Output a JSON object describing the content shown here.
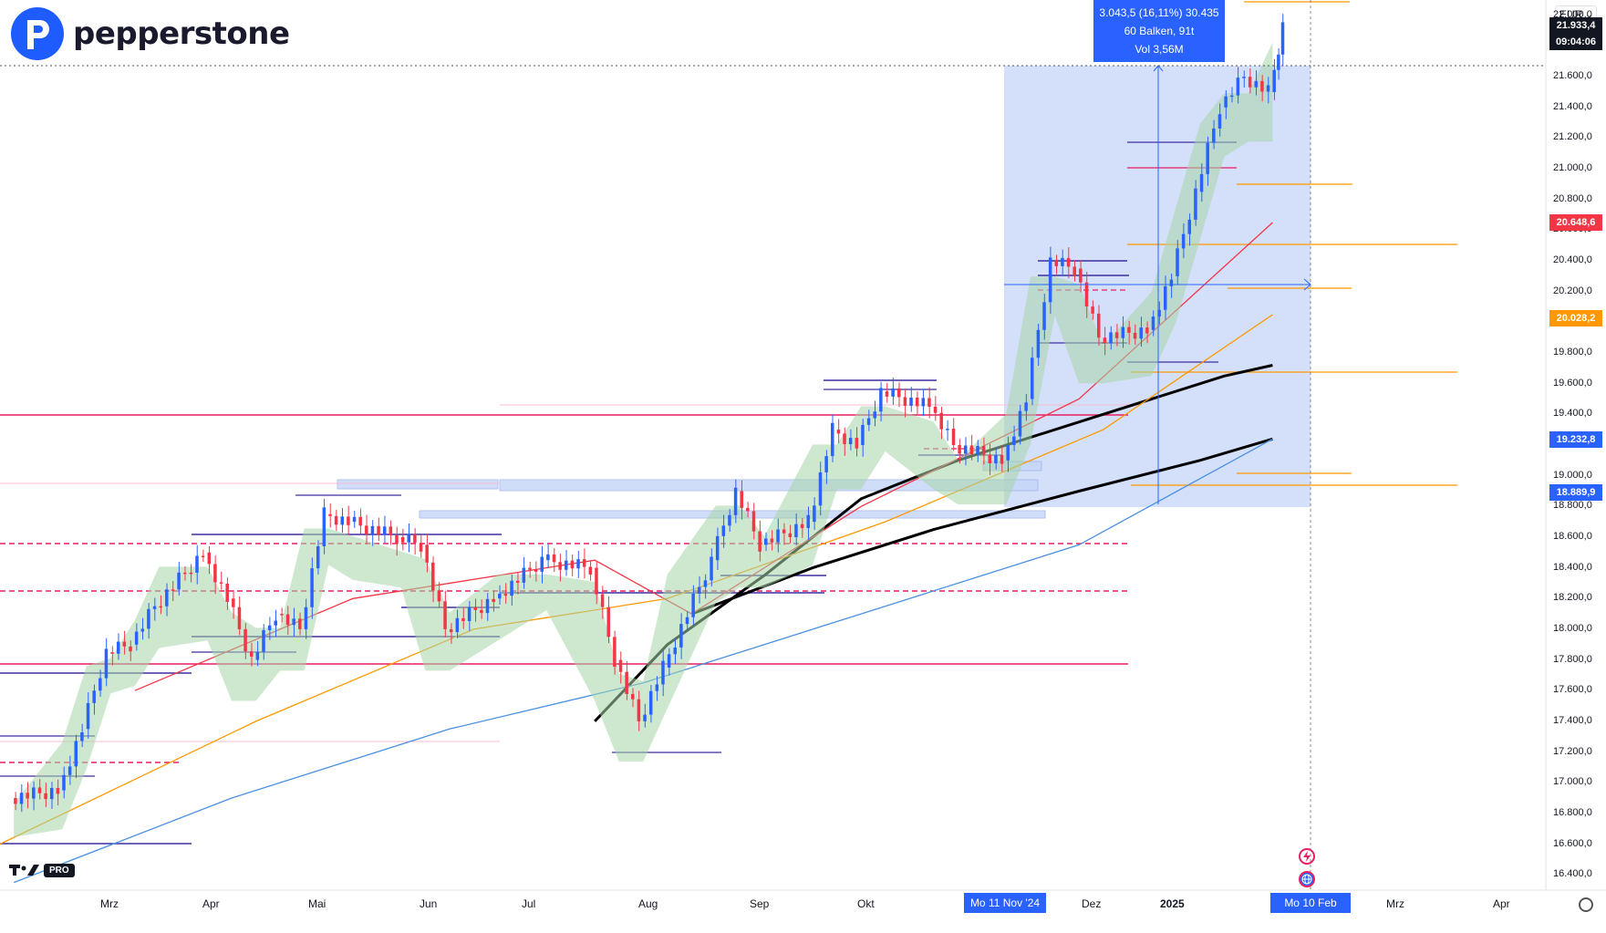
{
  "header": {
    "brand": "pepperstone",
    "currency": "EUR"
  },
  "measure": {
    "line1": "3.043,5 (16,11%) 30.435",
    "line2": "60 Balken, 91t",
    "line3": "Vol 3,56M"
  },
  "price_axis": {
    "ticks": [
      "22.000,0",
      "21.600,0",
      "21.400,0",
      "21.200,0",
      "21.000,0",
      "20.800,0",
      "20.600,0",
      "20.400,0",
      "20.200,0",
      "19.800,0",
      "19.600,0",
      "19.400,0",
      "19.000,0",
      "18.800,0",
      "18.600,0",
      "18.400,0",
      "18.200,0",
      "18.000,0",
      "17.800,0",
      "17.600,0",
      "17.400,0",
      "17.200,0",
      "17.000,0",
      "16.800,0",
      "16.600,0",
      "16.400,0"
    ],
    "tags": [
      {
        "label": "21.933,4",
        "color": "#131722"
      },
      {
        "label": "09:04:06",
        "color": "#131722"
      },
      {
        "label": "20.648,6",
        "color": "#f23645"
      },
      {
        "label": "20.028,2",
        "color": "#ff9800"
      },
      {
        "label": "19.232,8",
        "color": "#2962ff"
      },
      {
        "label": "18.889,9",
        "color": "#2962ff"
      }
    ]
  },
  "time_axis": {
    "months": [
      "Mrz",
      "Apr",
      "Mai",
      "Jun",
      "Jul",
      "Aug",
      "Sep",
      "Okt",
      "Dez",
      "Mrz",
      "Apr"
    ],
    "year": "2025",
    "range_start": "Mo 11 Nov '24",
    "range_end": "Mo 10 Feb '25"
  },
  "footer": {
    "tv_badge": "PRO"
  },
  "colors": {
    "up": "#2962ff",
    "down": "#f23645",
    "ema_fill_up": "#a5d6a7",
    "ema_fill_down": "#d7a7a7",
    "orange": "#ff9800",
    "blue_ma": "#4a90e2",
    "black_ma": "#000000",
    "highlight": "#c5d5f8"
  },
  "chart_data": {
    "type": "candlestick",
    "instrument": "",
    "currency": "EUR",
    "y_range": [
      16300,
      22100
    ],
    "x_range": [
      "2024-02-08",
      "2025-04-30"
    ],
    "last_price": 21933.4,
    "candles": [
      {
        "d": "2024-02-12",
        "o": 16900,
        "c": 16950
      },
      {
        "d": "2024-02-26",
        "o": 16950,
        "c": 17350
      },
      {
        "d": "2024-03-04",
        "o": 17350,
        "c": 17850
      },
      {
        "d": "2024-03-11",
        "o": 17850,
        "c": 17900
      },
      {
        "d": "2024-03-18",
        "o": 17900,
        "c": 18150
      },
      {
        "d": "2024-03-25",
        "o": 18150,
        "c": 18500
      },
      {
        "d": "2024-04-08",
        "o": 18500,
        "c": 18200
      },
      {
        "d": "2024-04-15",
        "o": 18200,
        "c": 17800
      },
      {
        "d": "2024-04-22",
        "o": 17800,
        "c": 18100
      },
      {
        "d": "2024-04-29",
        "o": 18100,
        "c": 18000
      },
      {
        "d": "2024-05-06",
        "o": 18000,
        "c": 18750
      },
      {
        "d": "2024-05-13",
        "o": 18750,
        "c": 18700
      },
      {
        "d": "2024-05-20",
        "o": 18700,
        "c": 18600
      },
      {
        "d": "2024-06-03",
        "o": 18600,
        "c": 18550
      },
      {
        "d": "2024-06-10",
        "o": 18550,
        "c": 18000
      },
      {
        "d": "2024-06-17",
        "o": 18000,
        "c": 18200
      },
      {
        "d": "2024-07-01",
        "o": 18200,
        "c": 18450
      },
      {
        "d": "2024-07-15",
        "o": 18450,
        "c": 18400
      },
      {
        "d": "2024-07-29",
        "o": 18400,
        "c": 17800
      },
      {
        "d": "2024-08-05",
        "o": 17800,
        "c": 17400
      },
      {
        "d": "2024-08-12",
        "o": 17400,
        "c": 17750
      },
      {
        "d": "2024-08-19",
        "o": 17750,
        "c": 18450
      },
      {
        "d": "2024-09-02",
        "o": 18450,
        "c": 18900
      },
      {
        "d": "2024-09-09",
        "o": 18900,
        "c": 18550
      },
      {
        "d": "2024-09-16",
        "o": 18550,
        "c": 18700
      },
      {
        "d": "2024-09-30",
        "o": 18700,
        "c": 19300
      },
      {
        "d": "2024-10-07",
        "o": 19300,
        "c": 19200
      },
      {
        "d": "2024-10-14",
        "o": 19200,
        "c": 19550
      },
      {
        "d": "2024-10-21",
        "o": 19550,
        "c": 19450
      },
      {
        "d": "2024-11-04",
        "o": 19450,
        "c": 19200
      },
      {
        "d": "2024-11-11",
        "o": 19200,
        "c": 19100
      },
      {
        "d": "2024-11-25",
        "o": 19100,
        "c": 19500
      },
      {
        "d": "2024-12-02",
        "o": 19500,
        "c": 20400
      },
      {
        "d": "2024-12-09",
        "o": 20400,
        "c": 20350
      },
      {
        "d": "2024-12-16",
        "o": 20350,
        "c": 19900
      },
      {
        "d": "2024-12-23",
        "o": 19900,
        "c": 19950
      },
      {
        "d": "2025-01-06",
        "o": 19950,
        "c": 20300
      },
      {
        "d": "2025-01-13",
        "o": 20300,
        "c": 20850
      },
      {
        "d": "2025-01-20",
        "o": 20850,
        "c": 21400
      },
      {
        "d": "2025-01-27",
        "o": 21400,
        "c": 21600
      },
      {
        "d": "2025-02-03",
        "o": 21600,
        "c": 21500
      },
      {
        "d": "2025-02-10",
        "o": 21500,
        "c": 21933
      }
    ],
    "moving_averages": [
      {
        "color": "#000000",
        "points": [
          [
            "2024-07-29",
            17400
          ],
          [
            "2024-08-19",
            17900
          ],
          [
            "2024-09-16",
            18350
          ],
          [
            "2024-10-14",
            18850
          ],
          [
            "2024-11-11",
            19100
          ],
          [
            "2024-12-23",
            19400
          ],
          [
            "2025-01-27",
            19650
          ],
          [
            "2025-02-10",
            19720
          ]
        ]
      },
      {
        "color": "#000000",
        "points": [
          [
            "2024-08-26",
            18100
          ],
          [
            "2024-09-30",
            18400
          ],
          [
            "2024-11-04",
            18650
          ],
          [
            "2024-12-16",
            18900
          ],
          [
            "2025-01-20",
            19100
          ],
          [
            "2025-02-10",
            19240
          ]
        ]
      },
      {
        "color": "#4a90e2",
        "points": [
          [
            "2024-02-12",
            16350
          ],
          [
            "2024-04-15",
            16900
          ],
          [
            "2024-06-17",
            17350
          ],
          [
            "2024-08-12",
            17650
          ],
          [
            "2024-10-14",
            18100
          ],
          [
            "2024-12-16",
            18550
          ],
          [
            "2025-02-10",
            19240
          ]
        ]
      },
      {
        "color": "#ff9800",
        "points": [
          [
            "2024-02-08",
            16600
          ],
          [
            "2024-04-22",
            17400
          ],
          [
            "2024-06-24",
            18000
          ],
          [
            "2024-08-19",
            18200
          ],
          [
            "2024-10-21",
            18700
          ],
          [
            "2024-12-23",
            19300
          ],
          [
            "2025-02-10",
            20050
          ]
        ]
      },
      {
        "color": "#f23645",
        "points": [
          [
            "2024-03-18",
            17600
          ],
          [
            "2024-05-20",
            18200
          ],
          [
            "2024-07-29",
            18450
          ],
          [
            "2024-08-26",
            18100
          ],
          [
            "2024-10-14",
            18800
          ],
          [
            "2024-12-16",
            19500
          ],
          [
            "2025-02-10",
            20650
          ]
        ]
      }
    ]
  }
}
